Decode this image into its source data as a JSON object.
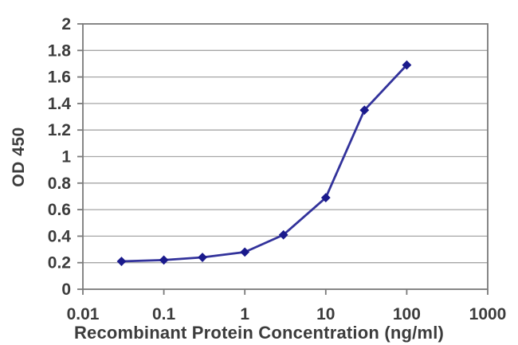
{
  "chart_data": {
    "type": "line",
    "title": "",
    "xlabel": "Recombinant Protein Concentration (ng/ml)",
    "ylabel": "OD 450",
    "x_scale": "log",
    "xlim": [
      0.01,
      1000
    ],
    "ylim": [
      0,
      2
    ],
    "x_ticks": [
      0.01,
      0.1,
      1,
      10,
      100,
      1000
    ],
    "x_tick_labels": [
      "0.01",
      "0.1",
      "1",
      "10",
      "100",
      "1000"
    ],
    "y_ticks": [
      0,
      0.2,
      0.4,
      0.6,
      0.8,
      1,
      1.2,
      1.4,
      1.6,
      1.8,
      2
    ],
    "y_tick_labels": [
      "0",
      "0.2",
      "0.4",
      "0.6",
      "0.8",
      "1",
      "1.2",
      "1.4",
      "1.6",
      "1.8",
      "2"
    ],
    "grid": "horizontal",
    "legend": "none",
    "series": [
      {
        "name": "OD 450",
        "marker": "diamond",
        "x": [
          0.03,
          0.1,
          0.3,
          1,
          3,
          10,
          30,
          100
        ],
        "y": [
          0.21,
          0.22,
          0.24,
          0.28,
          0.41,
          0.69,
          1.35,
          1.69
        ]
      }
    ],
    "colors": {
      "line": "#32329b",
      "marker": "#1a1a8c",
      "gridline": "#a6a6a6",
      "plot_border": "#7a7a7a",
      "tick": "#7a7a7a",
      "text": "#3c3c3c",
      "background": "#ffffff"
    }
  }
}
